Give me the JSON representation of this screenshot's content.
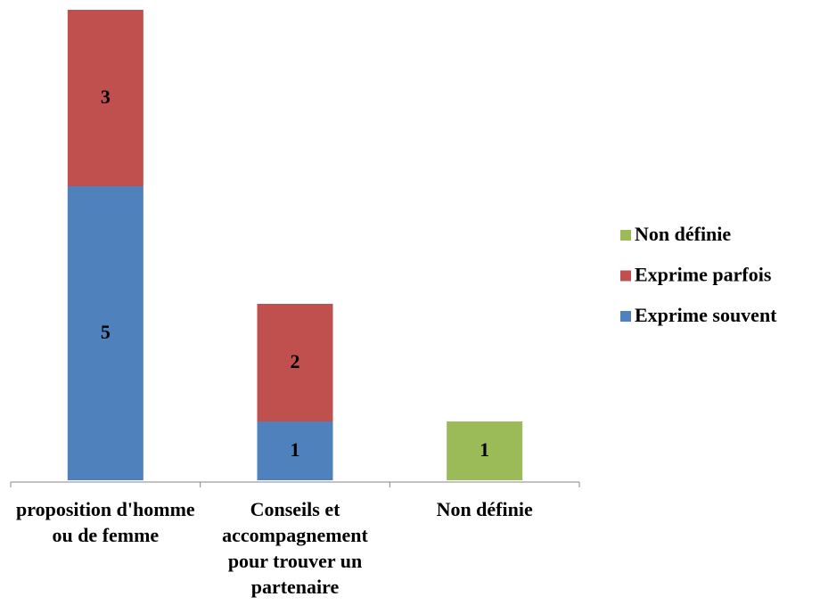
{
  "chart_data": {
    "type": "stacked_bar",
    "categories": [
      "proposition d'homme ou de femme",
      "Conseils et accompagnement pour trouver un partenaire",
      "Non définie"
    ],
    "series": [
      {
        "name": "Exprime souvent",
        "color": "#4f81bd",
        "values": [
          5,
          1,
          null
        ]
      },
      {
        "name": "Exprime parfois",
        "color": "#c0504d",
        "values": [
          3,
          2,
          null
        ]
      },
      {
        "name": "Non définie",
        "color": "#9bbb59",
        "values": [
          null,
          null,
          1
        ]
      }
    ],
    "legend": "right"
  }
}
